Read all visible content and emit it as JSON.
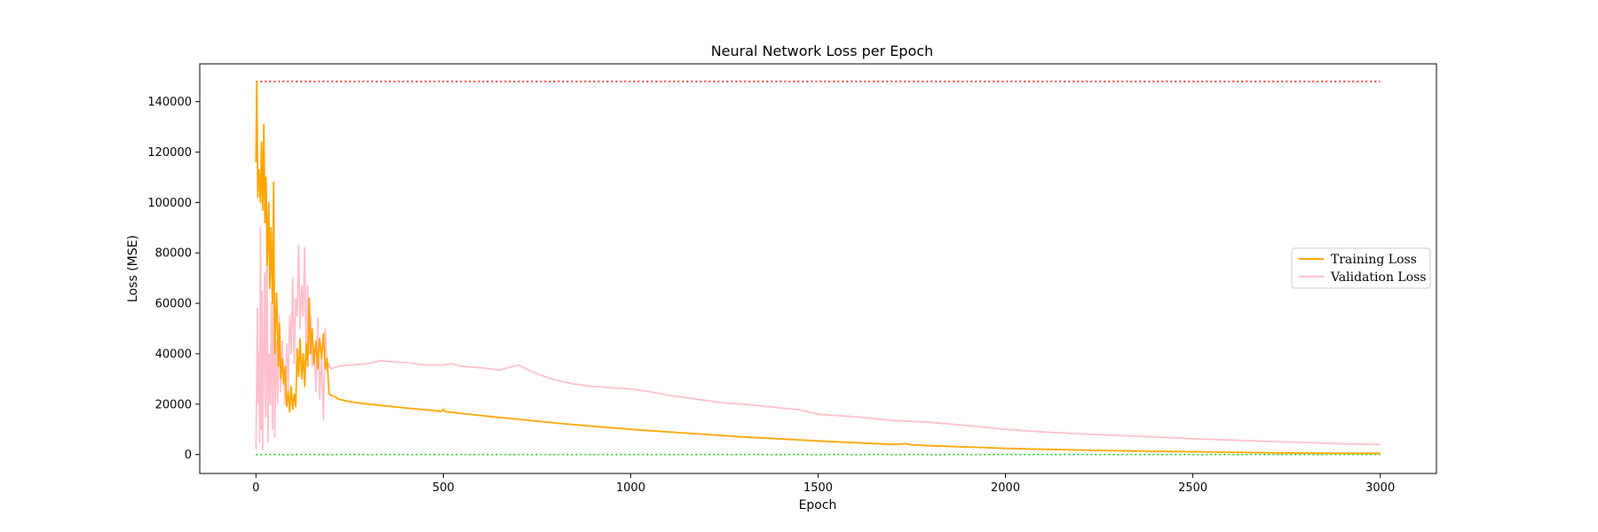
{
  "chart_data": {
    "type": "line",
    "title": "Neural Network Loss per Epoch",
    "xlabel": "Epoch",
    "ylabel": "Loss (MSE)",
    "xlim": [
      -150,
      3150
    ],
    "ylim": [
      -7500,
      155000
    ],
    "xticks": [
      0,
      500,
      1000,
      1500,
      2000,
      2500,
      3000
    ],
    "yticks": [
      0,
      20000,
      40000,
      60000,
      80000,
      100000,
      120000,
      140000
    ],
    "grid": false,
    "legend_position": "center-right",
    "colors": {
      "training": "#ffa500",
      "validation": "#ffc0cb",
      "max_line": "#ff0000",
      "min_line": "#00cc00"
    },
    "reference_lines": [
      {
        "style": "dotted",
        "color": "#ff0000",
        "y": 148000,
        "x": [
          0,
          3000
        ]
      },
      {
        "style": "dotted",
        "color": "#00cc00",
        "y": 0,
        "x": [
          0,
          3000
        ]
      }
    ],
    "series": [
      {
        "name": "Training Loss",
        "color": "#ffa500",
        "points": [
          [
            0,
            116000
          ],
          [
            2,
            148000
          ],
          [
            5,
            102000
          ],
          [
            8,
            113000
          ],
          [
            12,
            100000
          ],
          [
            15,
            124000
          ],
          [
            18,
            97000
          ],
          [
            21,
            131000
          ],
          [
            24,
            92000
          ],
          [
            27,
            110000
          ],
          [
            30,
            75000
          ],
          [
            34,
            100000
          ],
          [
            37,
            66000
          ],
          [
            40,
            90000
          ],
          [
            44,
            60000
          ],
          [
            47,
            108000
          ],
          [
            50,
            40000
          ],
          [
            55,
            64000
          ],
          [
            60,
            35000
          ],
          [
            63,
            52000
          ],
          [
            66,
            30000
          ],
          [
            70,
            38000
          ],
          [
            74,
            28000
          ],
          [
            78,
            35000
          ],
          [
            82,
            19000
          ],
          [
            86,
            25000
          ],
          [
            90,
            17000
          ],
          [
            94,
            27000
          ],
          [
            98,
            18000
          ],
          [
            102,
            24000
          ],
          [
            106,
            19000
          ],
          [
            110,
            42000
          ],
          [
            114,
            31000
          ],
          [
            118,
            46000
          ],
          [
            122,
            30000
          ],
          [
            126,
            40000
          ],
          [
            130,
            27000
          ],
          [
            134,
            44000
          ],
          [
            138,
            35000
          ],
          [
            142,
            62000
          ],
          [
            146,
            40000
          ],
          [
            150,
            50000
          ],
          [
            155,
            36000
          ],
          [
            160,
            45000
          ],
          [
            165,
            34000
          ],
          [
            170,
            46000
          ],
          [
            175,
            38000
          ],
          [
            180,
            48000
          ],
          [
            185,
            34000
          ],
          [
            190,
            38000
          ],
          [
            195,
            24000
          ],
          [
            200,
            23500
          ],
          [
            210,
            23000
          ],
          [
            220,
            22000
          ],
          [
            250,
            21000
          ],
          [
            300,
            20000
          ],
          [
            400,
            18500
          ],
          [
            495,
            17200
          ],
          [
            500,
            18000
          ],
          [
            505,
            17000
          ],
          [
            600,
            15500
          ],
          [
            700,
            14000
          ],
          [
            800,
            12500
          ],
          [
            900,
            11200
          ],
          [
            1000,
            10000
          ],
          [
            1100,
            9000
          ],
          [
            1200,
            8000
          ],
          [
            1300,
            7000
          ],
          [
            1400,
            6200
          ],
          [
            1500,
            5400
          ],
          [
            1600,
            4700
          ],
          [
            1700,
            4000
          ],
          [
            1740,
            4300
          ],
          [
            1745,
            3900
          ],
          [
            1800,
            3500
          ],
          [
            1900,
            3000
          ],
          [
            2000,
            2500
          ],
          [
            2100,
            2100
          ],
          [
            2200,
            1800
          ],
          [
            2300,
            1500
          ],
          [
            2400,
            1300
          ],
          [
            2500,
            1100
          ],
          [
            2600,
            900
          ],
          [
            2700,
            700
          ],
          [
            2800,
            600
          ],
          [
            2900,
            500
          ],
          [
            3000,
            500
          ]
        ]
      },
      {
        "name": "Validation Loss",
        "color": "#ffc0cb",
        "points": [
          [
            0,
            2000
          ],
          [
            2,
            30000
          ],
          [
            4,
            58000
          ],
          [
            6,
            20000
          ],
          [
            8,
            40000
          ],
          [
            10,
            5000
          ],
          [
            12,
            90000
          ],
          [
            14,
            10000
          ],
          [
            16,
            65000
          ],
          [
            18,
            2000
          ],
          [
            20,
            30000
          ],
          [
            23,
            72000
          ],
          [
            26,
            15000
          ],
          [
            29,
            95000
          ],
          [
            32,
            5000
          ],
          [
            35,
            40000
          ],
          [
            38,
            20000
          ],
          [
            41,
            60000
          ],
          [
            44,
            10000
          ],
          [
            47,
            80000
          ],
          [
            50,
            7000
          ],
          [
            54,
            45000
          ],
          [
            58,
            20000
          ],
          [
            62,
            55000
          ],
          [
            66,
            25000
          ],
          [
            70,
            45000
          ],
          [
            74,
            30000
          ],
          [
            78,
            20000
          ],
          [
            82,
            44000
          ],
          [
            86,
            25000
          ],
          [
            90,
            55000
          ],
          [
            94,
            40000
          ],
          [
            98,
            70000
          ],
          [
            102,
            36000
          ],
          [
            106,
            62000
          ],
          [
            110,
            55000
          ],
          [
            114,
            83000
          ],
          [
            118,
            50000
          ],
          [
            122,
            67000
          ],
          [
            126,
            55000
          ],
          [
            130,
            82000
          ],
          [
            134,
            40000
          ],
          [
            138,
            67000
          ],
          [
            142,
            40000
          ],
          [
            146,
            55000
          ],
          [
            150,
            35000
          ],
          [
            155,
            42000
          ],
          [
            160,
            25000
          ],
          [
            165,
            54000
          ],
          [
            170,
            22000
          ],
          [
            175,
            40000
          ],
          [
            180,
            14000
          ],
          [
            185,
            50000
          ],
          [
            190,
            33000
          ],
          [
            195,
            36000
          ],
          [
            200,
            34000
          ],
          [
            220,
            35000
          ],
          [
            250,
            35500
          ],
          [
            300,
            36000
          ],
          [
            330,
            37200
          ],
          [
            350,
            37000
          ],
          [
            400,
            36500
          ],
          [
            450,
            35500
          ],
          [
            500,
            35500
          ],
          [
            520,
            36000
          ],
          [
            550,
            35000
          ],
          [
            600,
            34500
          ],
          [
            650,
            33500
          ],
          [
            700,
            35500
          ],
          [
            750,
            32000
          ],
          [
            800,
            29500
          ],
          [
            850,
            28000
          ],
          [
            900,
            27000
          ],
          [
            1000,
            26000
          ],
          [
            1050,
            25000
          ],
          [
            1100,
            23500
          ],
          [
            1150,
            22500
          ],
          [
            1200,
            21500
          ],
          [
            1250,
            20500
          ],
          [
            1300,
            20000
          ],
          [
            1400,
            18500
          ],
          [
            1450,
            17800
          ],
          [
            1500,
            16000
          ],
          [
            1600,
            15000
          ],
          [
            1700,
            13500
          ],
          [
            1800,
            12800
          ],
          [
            1900,
            11500
          ],
          [
            2000,
            10000
          ],
          [
            2100,
            9000
          ],
          [
            2200,
            8200
          ],
          [
            2300,
            7600
          ],
          [
            2400,
            7000
          ],
          [
            2500,
            6300
          ],
          [
            2600,
            5800
          ],
          [
            2700,
            5200
          ],
          [
            2800,
            4800
          ],
          [
            2900,
            4300
          ],
          [
            3000,
            4000
          ]
        ]
      }
    ]
  }
}
